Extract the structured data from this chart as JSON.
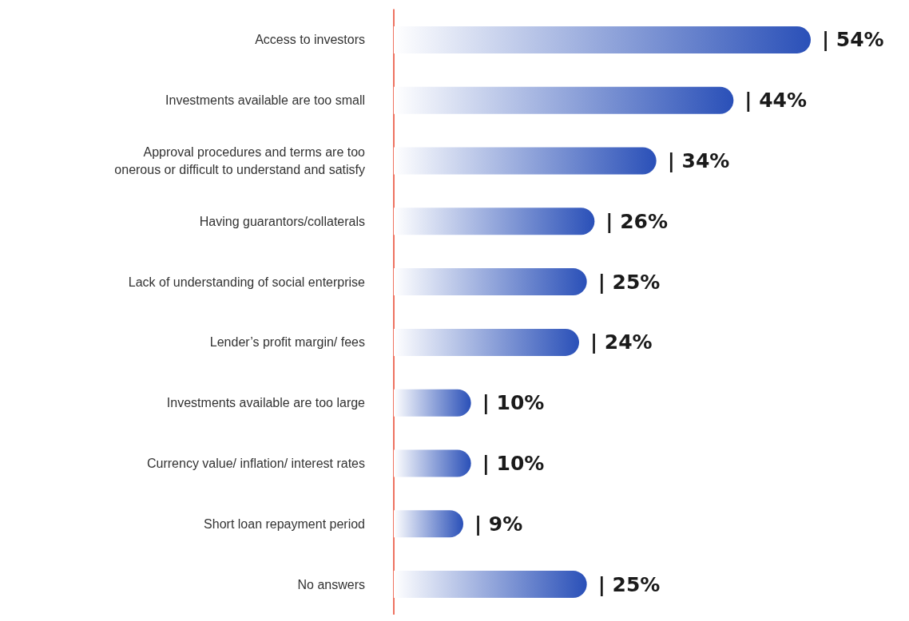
{
  "chart_data": {
    "type": "bar",
    "orientation": "horizontal",
    "categories": [
      "Access to investors",
      "Investments available are too small",
      "Approval procedures and terms are too\nonerous or difficult to understand and satisfy",
      "Having guarantors/collaterals",
      "Lack of understanding of social enterprise",
      "Lender’s profit margin/ fees",
      "Investments available are too large",
      "Currency value/ inflation/ interest rates",
      "Short loan repayment period",
      "No answers"
    ],
    "values": [
      54,
      44,
      34,
      26,
      25,
      24,
      10,
      10,
      9,
      25
    ],
    "color": "#2a50b8",
    "value_labels": [
      "| 54%",
      "| 44%",
      "| 34%",
      "| 26%",
      "| 25%",
      "| 24%",
      "| 10%",
      "| 10%",
      "| 9%",
      "| 25%"
    ]
  }
}
